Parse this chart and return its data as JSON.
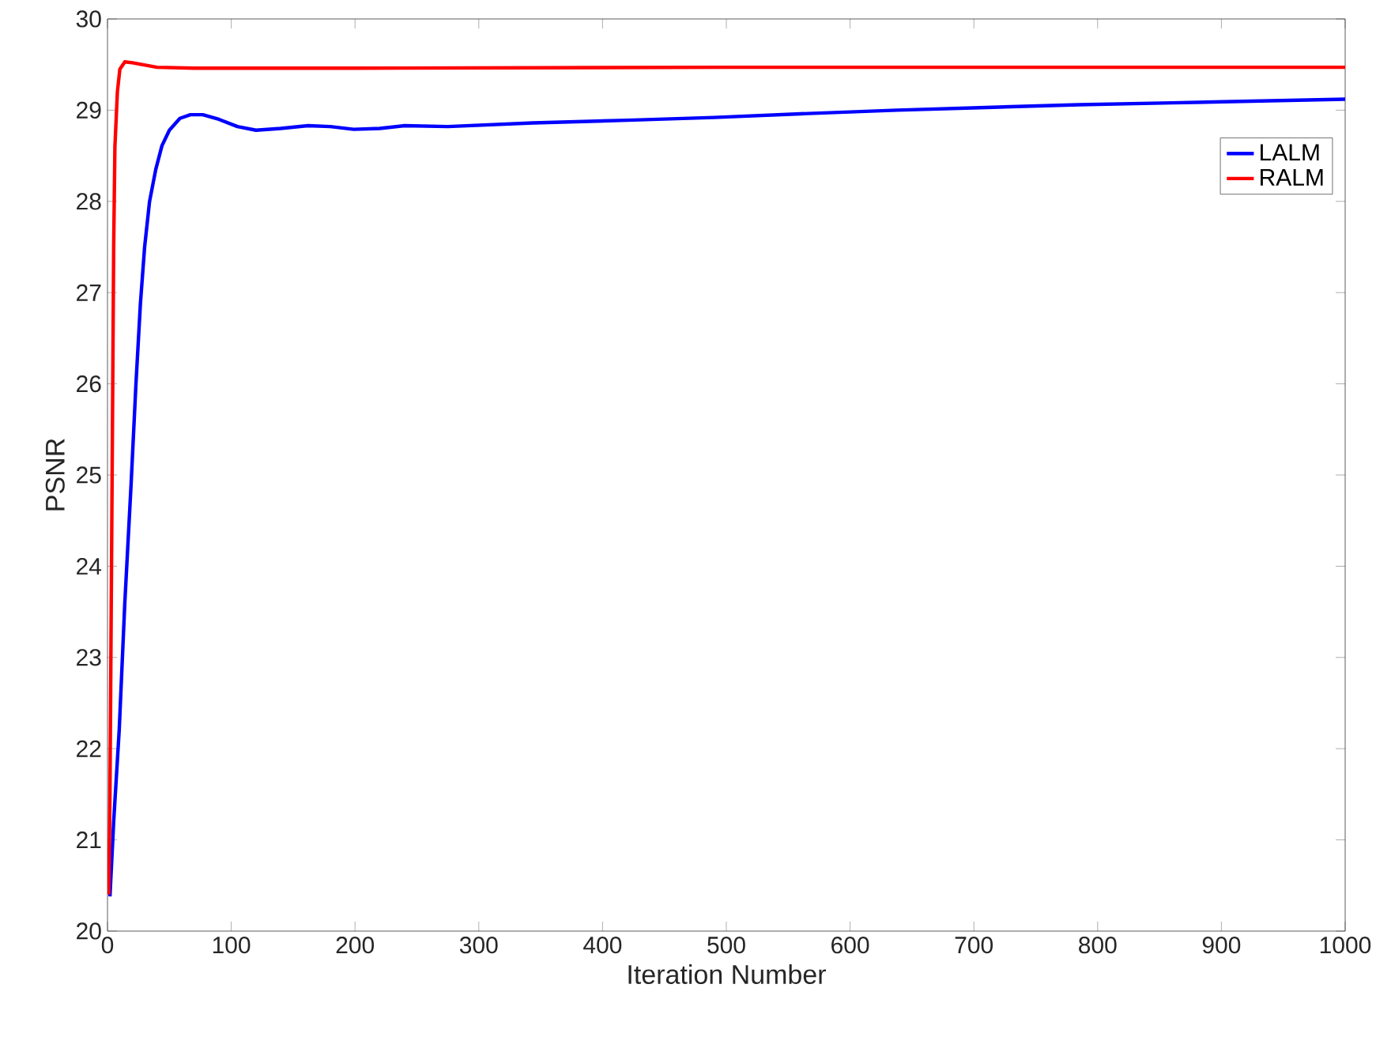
{
  "chart_data": {
    "type": "line",
    "xlabel": "Iteration Number",
    "ylabel": "PSNR",
    "xlim": [
      0,
      1000
    ],
    "ylim": [
      20,
      30
    ],
    "xticks": [
      0,
      100,
      200,
      300,
      400,
      500,
      600,
      700,
      800,
      900,
      1000
    ],
    "yticks": [
      20,
      21,
      22,
      23,
      24,
      25,
      26,
      27,
      28,
      29,
      30
    ],
    "grid": false,
    "legend": "top right",
    "line_style": "solid",
    "marker": "none",
    "series": [
      {
        "name": "LALM",
        "color": "#0000ff",
        "x": [
          2,
          5,
          9.5,
          14,
          19,
          23,
          26.6,
          30,
          34,
          39,
          44,
          50,
          58.5,
          67,
          77,
          90,
          105,
          120,
          140,
          162,
          180,
          199,
          220,
          240,
          275,
          344,
          420,
          490,
          560,
          638,
          710,
          785,
          860,
          930,
          1000
        ],
        "values": [
          20.38,
          21.2,
          22.21,
          23.6,
          24.88,
          26.0,
          26.88,
          27.5,
          28.0,
          28.35,
          28.61,
          28.78,
          28.91,
          28.95,
          28.95,
          28.9,
          28.82,
          28.78,
          28.8,
          28.83,
          28.82,
          28.79,
          28.8,
          28.83,
          28.82,
          28.86,
          28.89,
          28.92,
          28.96,
          29.0,
          29.03,
          29.06,
          29.08,
          29.1,
          29.12
        ]
      },
      {
        "name": "RALM",
        "color": "#ff0000",
        "x": [
          1,
          2,
          3,
          4,
          5,
          6,
          8,
          10,
          14,
          20,
          40,
          70,
          200,
          500,
          1000
        ],
        "values": [
          20.4,
          21.5,
          23.5,
          25.5,
          27.5,
          28.6,
          29.2,
          29.45,
          29.53,
          29.52,
          29.47,
          29.46,
          29.46,
          29.47,
          29.47
        ]
      }
    ]
  }
}
